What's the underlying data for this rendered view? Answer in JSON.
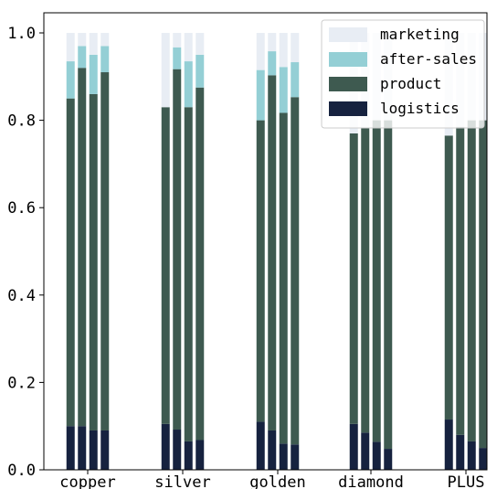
{
  "chart_data": {
    "type": "bar",
    "stacked": true,
    "categories": [
      "copper",
      "silver",
      "golden",
      "diamond",
      "PLUS"
    ],
    "bars_per_category": 4,
    "ylim": [
      0,
      1.0
    ],
    "yticks": [
      0.0,
      0.2,
      0.4,
      0.6,
      0.8,
      1.0
    ],
    "ytick_labels": [
      "0.0",
      "0.2",
      "0.4",
      "0.6",
      "0.8",
      "1.0"
    ],
    "legend_position": "top-right",
    "series": [
      {
        "name": "logistics",
        "color": "#16223f",
        "values": [
          [
            0.1,
            0.1,
            0.09,
            0.09
          ],
          [
            0.105,
            0.092,
            0.065,
            0.068
          ],
          [
            0.11,
            0.09,
            0.06,
            0.058
          ],
          [
            0.105,
            0.085,
            0.064,
            0.048
          ],
          [
            0.115,
            0.08,
            0.065,
            0.05
          ]
        ]
      },
      {
        "name": "product",
        "color": "#3e5a50",
        "values": [
          [
            0.75,
            0.82,
            0.77,
            0.82
          ],
          [
            0.725,
            0.825,
            0.765,
            0.807
          ],
          [
            0.69,
            0.813,
            0.757,
            0.795
          ],
          [
            0.665,
            0.697,
            0.736,
            0.752
          ],
          [
            0.65,
            0.705,
            0.735,
            0.75
          ]
        ]
      },
      {
        "name": "after-sales",
        "color": "#94cfd5",
        "values": [
          [
            0.085,
            0.05,
            0.09,
            0.06
          ],
          [
            0.0,
            0.05,
            0.105,
            0.075
          ],
          [
            0.115,
            0.055,
            0.105,
            0.08
          ],
          [
            0.0,
            0.0,
            0.0,
            0.0
          ],
          [
            0.0,
            0.0,
            0.0,
            0.0
          ]
        ]
      },
      {
        "name": "marketing",
        "color": "#e8edf4",
        "values": [
          [
            0.065,
            0.03,
            0.05,
            0.03
          ],
          [
            0.17,
            0.033,
            0.065,
            0.05
          ],
          [
            0.085,
            0.042,
            0.078,
            0.067
          ],
          [
            0.23,
            0.218,
            0.2,
            0.2
          ],
          [
            0.235,
            0.215,
            0.2,
            0.2
          ]
        ]
      }
    ]
  }
}
